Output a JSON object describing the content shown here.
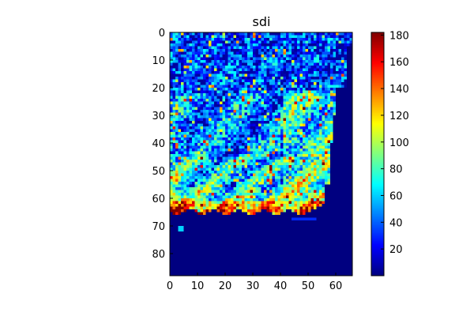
{
  "chart_data": {
    "type": "heatmap",
    "title": "sdi",
    "xlabel": "",
    "ylabel": "",
    "shape": [
      88,
      66
    ],
    "xlim": [
      0,
      66
    ],
    "ylim": [
      88,
      0
    ],
    "x_ticks": [
      "0",
      "10",
      "20",
      "30",
      "40",
      "50",
      "60"
    ],
    "y_ticks": [
      "0",
      "10",
      "20",
      "30",
      "40",
      "50",
      "60",
      "70",
      "80"
    ],
    "colorbar": {
      "colormap": "jet",
      "range": [
        0,
        182
      ],
      "ticks": [
        "20",
        "40",
        "60",
        "80",
        "100",
        "120",
        "140",
        "160",
        "180"
      ]
    },
    "grid": false,
    "notes_visible": "spatial raster of a region; land values ~20-180, ocean/no-data near 0 below row ~66 and to the right edge"
  },
  "colors": {
    "background": "#ffffff",
    "axes_edge": "#000000",
    "no_data": "#00007f"
  }
}
